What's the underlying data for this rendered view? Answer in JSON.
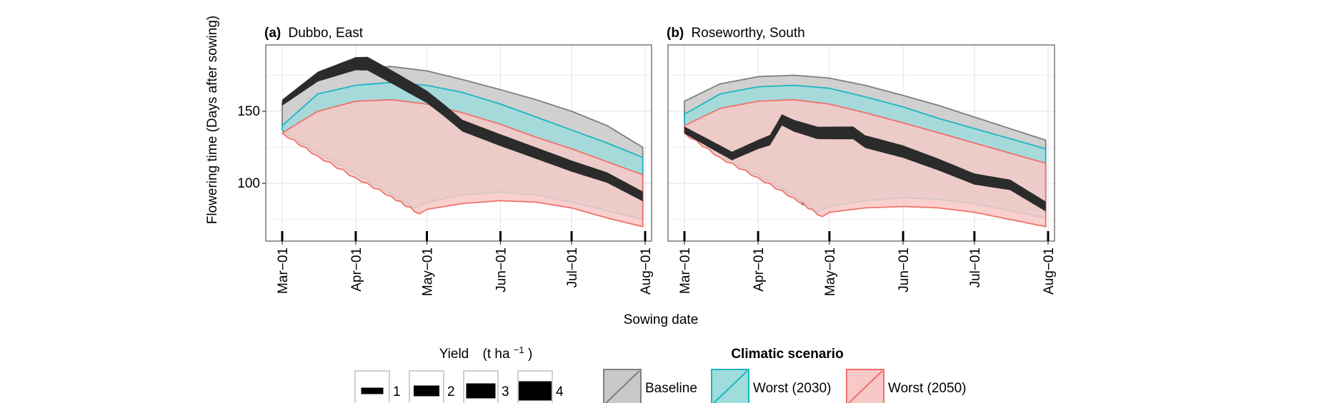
{
  "figure": {
    "y_axis_label": "Flowering time (Days after sowing)",
    "x_axis_label": "Sowing date"
  },
  "chart_data": [
    {
      "type": "area",
      "panel_letter": "(a)",
      "panel_title": "Dubbo, East",
      "xlabel": "Sowing date",
      "ylabel": "Flowering time (Days after sowing)",
      "x_ticks": [
        "Mar−01",
        "Apr−01",
        "May−01",
        "Jun−01",
        "Jul−01",
        "Aug−01"
      ],
      "x_tick_dates": [
        "03-01",
        "04-01",
        "05-01",
        "06-01",
        "07-01",
        "08-01"
      ],
      "y_ticks": [
        100,
        150
      ],
      "ylim": [
        60,
        196
      ],
      "grid": true,
      "series": [
        {
          "name": "Baseline",
          "upper": [
            [
              "03-01",
              156
            ],
            [
              "03-16",
              172
            ],
            [
              "04-01",
              180
            ],
            [
              "04-16",
              181
            ],
            [
              "05-01",
              178
            ],
            [
              "05-16",
              172
            ],
            [
              "06-01",
              165
            ],
            [
              "06-16",
              158
            ],
            [
              "07-01",
              150
            ],
            [
              "07-16",
              140
            ],
            [
              "07-31",
              125
            ]
          ],
          "lower": [
            [
              "03-01",
              140
            ],
            [
              "03-16",
              122
            ],
            [
              "04-01",
              110
            ],
            [
              "04-16",
              96
            ],
            [
              "04-20",
              90
            ],
            [
              "05-01",
              98
            ],
            [
              "05-16",
              104
            ],
            [
              "06-01",
              105
            ],
            [
              "06-16",
              102
            ],
            [
              "07-01",
              96
            ],
            [
              "07-16",
              89
            ],
            [
              "07-31",
              81
            ]
          ]
        },
        {
          "name": "Worst (2030)",
          "upper": [
            [
              "03-01",
              140
            ],
            [
              "03-16",
              162
            ],
            [
              "04-01",
              168
            ],
            [
              "04-16",
              170
            ],
            [
              "05-01",
              168
            ],
            [
              "05-16",
              163
            ],
            [
              "06-01",
              155
            ],
            [
              "06-16",
              146
            ],
            [
              "07-01",
              137
            ],
            [
              "07-16",
              128
            ],
            [
              "07-31",
              118
            ]
          ],
          "lower": [
            [
              "03-01",
              137
            ],
            [
              "03-16",
              121
            ],
            [
              "04-01",
              107
            ],
            [
              "04-16",
              93
            ],
            [
              "04-26",
              83
            ],
            [
              "05-01",
              87
            ],
            [
              "05-16",
              92
            ],
            [
              "06-01",
              94
            ],
            [
              "06-16",
              92
            ],
            [
              "07-01",
              87
            ],
            [
              "07-16",
              81
            ],
            [
              "07-31",
              75
            ]
          ]
        },
        {
          "name": "Worst (2050)",
          "upper": [
            [
              "03-01",
              135
            ],
            [
              "03-16",
              150
            ],
            [
              "04-01",
              157
            ],
            [
              "04-16",
              158
            ],
            [
              "05-01",
              155
            ],
            [
              "05-16",
              149
            ],
            [
              "06-01",
              141
            ],
            [
              "06-16",
              132
            ],
            [
              "07-01",
              124
            ],
            [
              "07-16",
              115
            ],
            [
              "07-31",
              106
            ]
          ],
          "lower": [
            [
              "03-01",
              135
            ],
            [
              "03-16",
              119
            ],
            [
              "04-01",
              104
            ],
            [
              "04-16",
              91
            ],
            [
              "04-28",
              79
            ],
            [
              "05-01",
              82
            ],
            [
              "05-16",
              86
            ],
            [
              "06-01",
              88
            ],
            [
              "06-16",
              87
            ],
            [
              "07-01",
              83
            ],
            [
              "07-16",
              76
            ],
            [
              "07-31",
              70
            ]
          ]
        }
      ],
      "yield_line": [
        [
          "03-01",
          156,
          1.2
        ],
        [
          "03-16",
          174,
          2.4
        ],
        [
          "04-01",
          183,
          3.4
        ],
        [
          "04-06",
          183,
          3.6
        ],
        [
          "04-16",
          174,
          3.5
        ],
        [
          "05-01",
          160,
          3.2
        ],
        [
          "05-08",
          151,
          3.1
        ],
        [
          "05-16",
          140,
          3.0
        ],
        [
          "06-01",
          130,
          3.0
        ],
        [
          "06-16",
          121,
          2.9
        ],
        [
          "07-01",
          112,
          2.8
        ],
        [
          "07-16",
          104,
          2.6
        ],
        [
          "07-31",
          91,
          2.4
        ]
      ]
    },
    {
      "type": "area",
      "panel_letter": "(b)",
      "panel_title": "Roseworthy, South",
      "xlabel": "Sowing date",
      "ylabel": "Flowering time (Days after sowing)",
      "x_ticks": [
        "Mar−01",
        "Apr−01",
        "May−01",
        "Jun−01",
        "Jul−01",
        "Aug−01"
      ],
      "x_tick_dates": [
        "03-01",
        "04-01",
        "05-01",
        "06-01",
        "07-01",
        "08-01"
      ],
      "y_ticks": [
        100,
        150
      ],
      "ylim": [
        60,
        196
      ],
      "grid": true,
      "series": [
        {
          "name": "Baseline",
          "upper": [
            [
              "03-01",
              157
            ],
            [
              "03-16",
              169
            ],
            [
              "04-01",
              174
            ],
            [
              "04-16",
              175
            ],
            [
              "05-01",
              173
            ],
            [
              "05-16",
              168
            ],
            [
              "06-01",
              161
            ],
            [
              "06-16",
              154
            ],
            [
              "07-01",
              146
            ],
            [
              "07-16",
              138
            ],
            [
              "07-31",
              130
            ]
          ],
          "lower": [
            [
              "03-01",
              140
            ],
            [
              "03-16",
              122
            ],
            [
              "04-01",
              109
            ],
            [
              "04-16",
              94
            ],
            [
              "04-20",
              85
            ],
            [
              "05-01",
              92
            ],
            [
              "05-16",
              96
            ],
            [
              "06-01",
              97
            ],
            [
              "06-16",
              95
            ],
            [
              "07-01",
              91
            ],
            [
              "07-16",
              86
            ],
            [
              "07-31",
              80
            ]
          ]
        },
        {
          "name": "Worst (2030)",
          "upper": [
            [
              "03-01",
              148
            ],
            [
              "03-16",
              162
            ],
            [
              "04-01",
              167
            ],
            [
              "04-16",
              168
            ],
            [
              "05-01",
              166
            ],
            [
              "05-16",
              160
            ],
            [
              "06-01",
              153
            ],
            [
              "06-16",
              145
            ],
            [
              "07-01",
              138
            ],
            [
              "07-16",
              131
            ],
            [
              "07-31",
              124
            ]
          ],
          "lower": [
            [
              "03-01",
              137
            ],
            [
              "03-16",
              120
            ],
            [
              "04-01",
              106
            ],
            [
              "04-16",
              92
            ],
            [
              "04-26",
              80
            ],
            [
              "05-01",
              84
            ],
            [
              "05-16",
              88
            ],
            [
              "06-01",
              90
            ],
            [
              "06-16",
              89
            ],
            [
              "07-01",
              86
            ],
            [
              "07-16",
              81
            ],
            [
              "07-31",
              76
            ]
          ]
        },
        {
          "name": "Worst (2050)",
          "upper": [
            [
              "03-01",
              140
            ],
            [
              "03-16",
              152
            ],
            [
              "04-01",
              157
            ],
            [
              "04-16",
              158
            ],
            [
              "05-01",
              155
            ],
            [
              "05-16",
              149
            ],
            [
              "06-01",
              142
            ],
            [
              "06-16",
              135
            ],
            [
              "07-01",
              128
            ],
            [
              "07-16",
              121
            ],
            [
              "07-31",
              114
            ]
          ],
          "lower": [
            [
              "03-01",
              135
            ],
            [
              "03-16",
              118
            ],
            [
              "04-01",
              104
            ],
            [
              "04-16",
              90
            ],
            [
              "04-28",
              77
            ],
            [
              "05-01",
              80
            ],
            [
              "05-16",
              83
            ],
            [
              "06-01",
              84
            ],
            [
              "06-16",
              83
            ],
            [
              "07-01",
              80
            ],
            [
              "07-16",
              75
            ],
            [
              "07-31",
              70
            ]
          ]
        }
      ],
      "yield_line": [
        [
          "03-01",
          137,
          1.5
        ],
        [
          "03-11",
          128,
          1.8
        ],
        [
          "03-21",
          119,
          2.0
        ],
        [
          "04-01",
          127,
          2.2
        ],
        [
          "04-06",
          130,
          2.6
        ],
        [
          "04-11",
          144,
          2.8
        ],
        [
          "04-16",
          140,
          3.0
        ],
        [
          "04-26",
          135,
          3.2
        ],
        [
          "05-11",
          135,
          3.3
        ],
        [
          "05-16",
          129,
          3.3
        ],
        [
          "06-01",
          122,
          3.2
        ],
        [
          "06-16",
          113,
          3.0
        ],
        [
          "07-01",
          103,
          2.8
        ],
        [
          "07-16",
          99,
          2.6
        ],
        [
          "07-31",
          84,
          2.4
        ]
      ]
    }
  ],
  "legend_yield": {
    "title": "Yield",
    "unit_text": "(t ha",
    "unit_sup": "−1",
    "unit_close": ")",
    "items": [
      {
        "label": "1",
        "value": 1
      },
      {
        "label": "2",
        "value": 2
      },
      {
        "label": "3",
        "value": 3
      },
      {
        "label": "4",
        "value": 4
      }
    ]
  },
  "legend_scenario": {
    "title": "Climatic scenario",
    "items": [
      {
        "label": "Baseline"
      },
      {
        "label": "Worst (2030)"
      },
      {
        "label": "Worst (2050)"
      }
    ]
  },
  "colors": {
    "baseline_fill": "#c8c8c8",
    "baseline_line": "#7f7f7f",
    "w2030_fill": "#9fdcdc",
    "w2030_line": "#1bb5c2",
    "w2050_fill": "#f8c8c6",
    "w2050_line": "#ef716b",
    "yield_line": "#2b2b2b",
    "grid": "#e6e6e6",
    "panel_border": "#7a7a7a"
  }
}
